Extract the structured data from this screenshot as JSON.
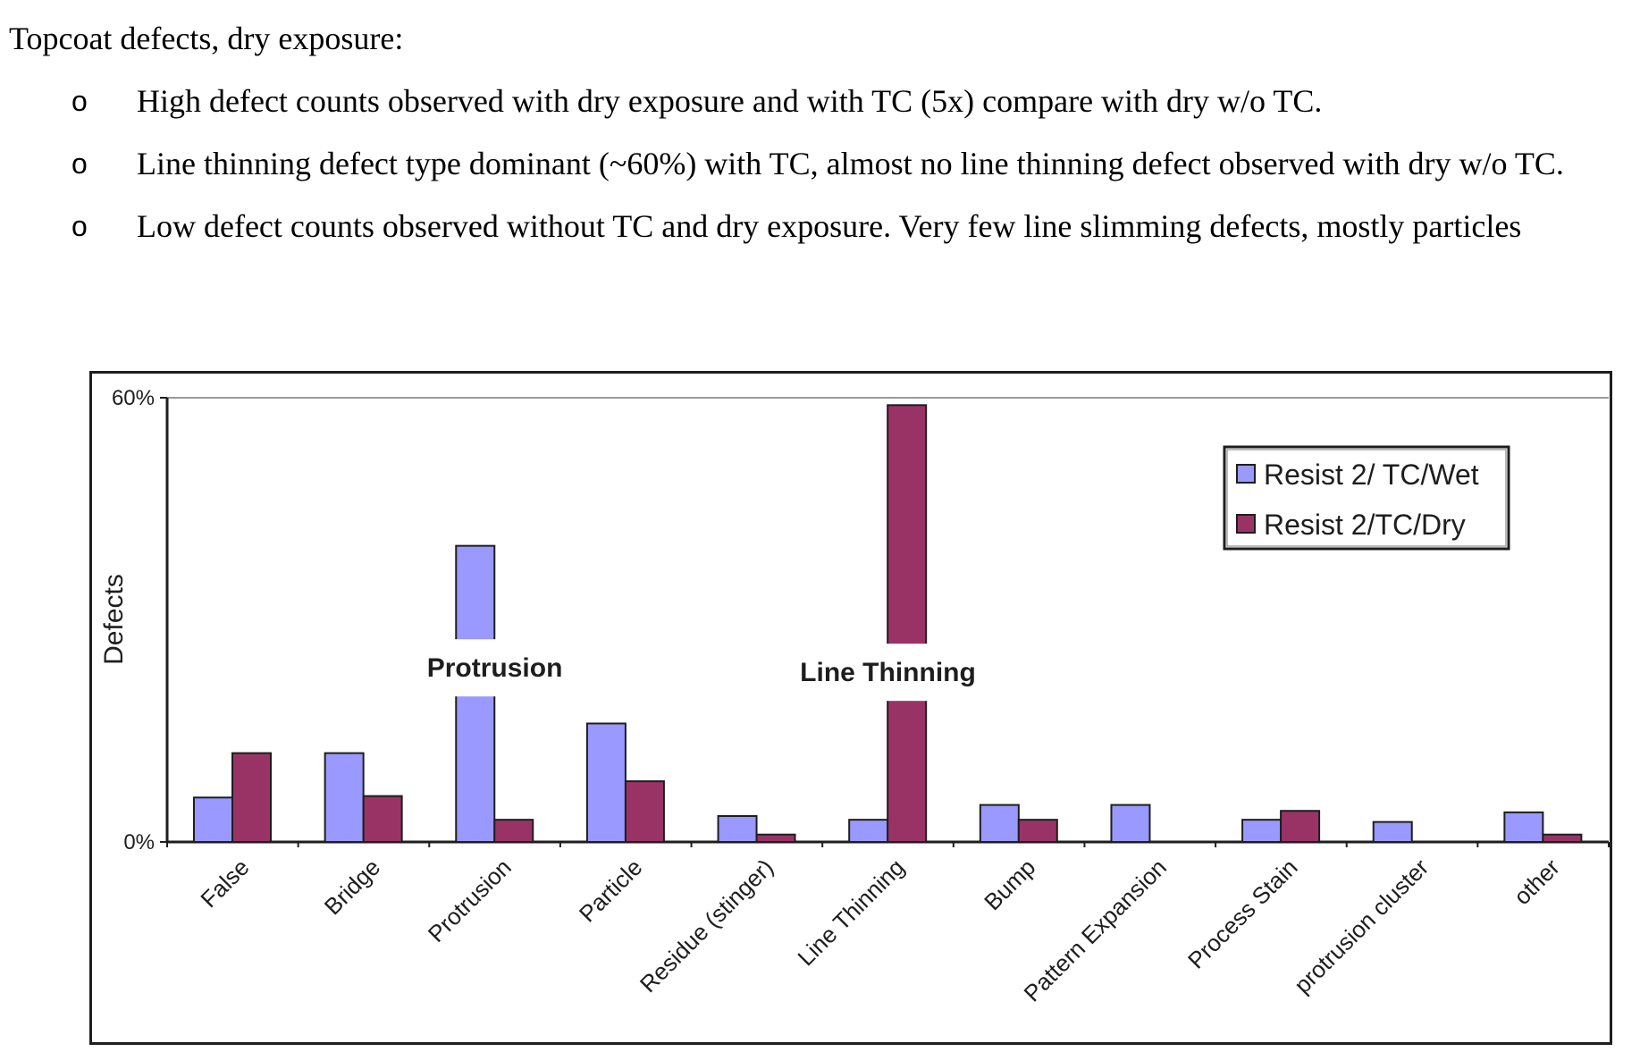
{
  "document": {
    "heading": "Topcoat defects, dry exposure:",
    "bullet_marker": "o",
    "bullets": [
      "High defect counts observed with dry exposure and with TC (5x) compare with dry w/o TC.",
      "Line thinning defect type dominant (~60%) with TC, almost no line thinning defect observed with dry w/o TC.",
      "Low defect counts observed without TC and dry exposure. Very few line slimming defects, mostly particles"
    ]
  },
  "chart_data": {
    "type": "bar",
    "ylabel": "Defects",
    "xlabel": "",
    "ylim": [
      0,
      60
    ],
    "yticks": [
      "0%",
      "60%"
    ],
    "categories": [
      "False",
      "Bridge",
      "Protrusion",
      "Particle",
      "Residue (stinger)",
      "Line Thinning",
      "Bump",
      "Pattern Expansion",
      "Process Stain",
      "protrusion cluster",
      "other"
    ],
    "series": [
      {
        "name": "Resist 2/ TC/Wet",
        "color": "#9999ff",
        "values": [
          6,
          12,
          40,
          16,
          3.5,
          3,
          5,
          5,
          3,
          2.7,
          4
        ]
      },
      {
        "name": "Resist 2/TC/Dry",
        "color": "#993366",
        "values": [
          12,
          6.2,
          3,
          8.2,
          1,
          59,
          3,
          0,
          4.2,
          0,
          1
        ]
      }
    ],
    "annotations": [
      {
        "text": "Protrusion",
        "category": "Protrusion",
        "value": 24
      },
      {
        "text": "Line Thinning",
        "category": "Line Thinning",
        "value": 23.4
      }
    ],
    "legend_position": "top-right",
    "grid": false
  }
}
